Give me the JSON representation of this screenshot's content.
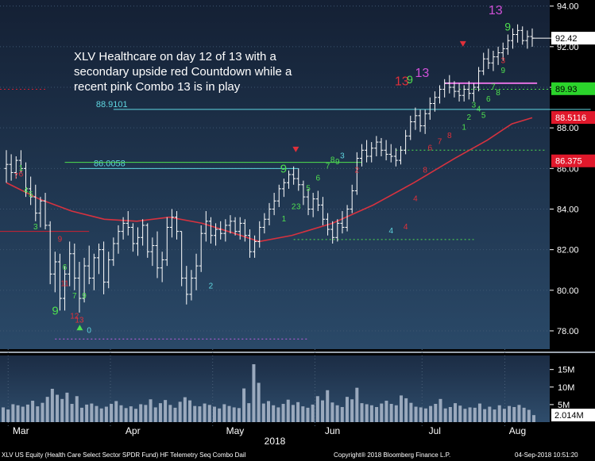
{
  "chart_data": {
    "type": "ohlc",
    "annotation": [
      "XLV Healthcare on day 12 of 13 with a",
      "secondary upside red Countdown while a",
      "recent pink Combo 13 is in play"
    ],
    "x_ticks": [
      "Mar",
      "Apr",
      "May",
      "Jun",
      "Jul",
      "Aug"
    ],
    "x_year": "2018",
    "y_ticks": [
      78,
      80,
      82,
      84,
      86,
      88,
      90,
      92,
      94
    ],
    "y_tick_labels": [
      "78.00",
      "80.00",
      "82.00",
      "84.00",
      "86.00",
      "88.00",
      "90.00",
      "92.00",
      "94.00"
    ],
    "ylim": [
      77.1,
      94.3
    ],
    "price_tags": [
      {
        "label": "92.42",
        "value": 92.42,
        "color": "#ffffff",
        "text_color": "#000000"
      },
      {
        "label": "89.93",
        "value": 89.93,
        "color": "#2bd42b",
        "text_color": "#000000"
      },
      {
        "label": "88.5116",
        "value": 88.5116,
        "color": "#e0182b",
        "text_color": "#ffffff"
      },
      {
        "label": "86.375",
        "value": 86.375,
        "color": "#e0182b",
        "text_color": "#ffffff"
      }
    ],
    "levels": [
      {
        "label": "88.9101",
        "value": 88.91,
        "x_start": 22,
        "x_end": 120,
        "color": "#5fd6e0"
      },
      {
        "label": "86.0058",
        "value": 86.0,
        "x_start": 15,
        "x_end": 60,
        "color": "#5fd6e0"
      }
    ],
    "moving_average": {
      "name": "",
      "color": "#d6323f",
      "points": [
        [
          0,
          85.3
        ],
        [
          8,
          84.5
        ],
        [
          16,
          83.9
        ],
        [
          24,
          83.5
        ],
        [
          32,
          83.4
        ],
        [
          40,
          83.6
        ],
        [
          48,
          83.3
        ],
        [
          56,
          82.8
        ],
        [
          62,
          82.4
        ],
        [
          70,
          82.7
        ],
        [
          80,
          83.3
        ],
        [
          90,
          84.2
        ],
        [
          100,
          85.3
        ],
        [
          110,
          86.5
        ],
        [
          118,
          87.4
        ],
        [
          124,
          88.2
        ],
        [
          129,
          88.5
        ]
      ]
    },
    "ohlc_bars": [
      {
        "x": 0,
        "o": 86,
        "h": 86.9,
        "l": 85.3,
        "c": 86.2
      },
      {
        "x": 1,
        "o": 86.2,
        "h": 86.7,
        "l": 85.4,
        "c": 85.8
      },
      {
        "x": 2,
        "o": 85.8,
        "h": 86.6,
        "l": 85.5,
        "c": 86.4
      },
      {
        "x": 3,
        "o": 86.4,
        "h": 86.9,
        "l": 85.8,
        "c": 86.0
      },
      {
        "x": 4,
        "o": 86.0,
        "h": 86.3,
        "l": 84.6,
        "c": 85.0
      },
      {
        "x": 5,
        "o": 85.0,
        "h": 85.6,
        "l": 84.2,
        "c": 84.6
      },
      {
        "x": 6,
        "o": 84.6,
        "h": 85.2,
        "l": 83.4,
        "c": 83.8
      },
      {
        "x": 7,
        "o": 83.8,
        "h": 84.6,
        "l": 83.1,
        "c": 84.4
      },
      {
        "x": 8,
        "o": 84.4,
        "h": 84.8,
        "l": 83.0,
        "c": 83.2
      },
      {
        "x": 9,
        "o": 83.2,
        "h": 83.4,
        "l": 80.3,
        "c": 80.8
      },
      {
        "x": 10,
        "o": 80.8,
        "h": 81.9,
        "l": 79.9,
        "c": 81.4
      },
      {
        "x": 11,
        "o": 81.4,
        "h": 81.8,
        "l": 79.0,
        "c": 79.6
      },
      {
        "x": 12,
        "o": 79.6,
        "h": 81.2,
        "l": 79.0,
        "c": 80.8
      },
      {
        "x": 13,
        "o": 80.8,
        "h": 82.4,
        "l": 80.2,
        "c": 81.8
      },
      {
        "x": 14,
        "o": 81.8,
        "h": 82.3,
        "l": 80.0,
        "c": 80.6
      },
      {
        "x": 15,
        "o": 80.6,
        "h": 81.4,
        "l": 78.9,
        "c": 79.6
      },
      {
        "x": 16,
        "o": 79.6,
        "h": 81.6,
        "l": 79.4,
        "c": 81.2
      },
      {
        "x": 17,
        "o": 81.2,
        "h": 82.2,
        "l": 80.3,
        "c": 80.6
      },
      {
        "x": 18,
        "o": 80.6,
        "h": 81.8,
        "l": 80.0,
        "c": 81.6
      },
      {
        "x": 19,
        "o": 81.6,
        "h": 82.3,
        "l": 80.8,
        "c": 82.0
      },
      {
        "x": 20,
        "o": 82.0,
        "h": 82.4,
        "l": 79.8,
        "c": 80.4
      },
      {
        "x": 21,
        "o": 80.4,
        "h": 81.9,
        "l": 80.1,
        "c": 81.5
      },
      {
        "x": 22,
        "o": 81.5,
        "h": 82.6,
        "l": 81.2,
        "c": 82.3
      },
      {
        "x": 23,
        "o": 82.3,
        "h": 83.2,
        "l": 81.8,
        "c": 82.9
      },
      {
        "x": 24,
        "o": 82.9,
        "h": 83.6,
        "l": 82.5,
        "c": 83.3
      },
      {
        "x": 25,
        "o": 83.3,
        "h": 83.9,
        "l": 82.7,
        "c": 83.1
      },
      {
        "x": 26,
        "o": 83.1,
        "h": 83.3,
        "l": 81.9,
        "c": 82.3
      },
      {
        "x": 27,
        "o": 82.3,
        "h": 83.1,
        "l": 81.7,
        "c": 82.6
      },
      {
        "x": 28,
        "o": 82.6,
        "h": 83.5,
        "l": 82.2,
        "c": 83.2
      },
      {
        "x": 29,
        "o": 83.2,
        "h": 83.3,
        "l": 81.6,
        "c": 81.9
      },
      {
        "x": 30,
        "o": 81.9,
        "h": 82.6,
        "l": 81.2,
        "c": 82.2
      },
      {
        "x": 31,
        "o": 82.2,
        "h": 82.9,
        "l": 80.6,
        "c": 81.1
      },
      {
        "x": 32,
        "o": 81.1,
        "h": 81.9,
        "l": 80.4,
        "c": 81.5
      },
      {
        "x": 33,
        "o": 81.5,
        "h": 83.6,
        "l": 81.2,
        "c": 83.1
      },
      {
        "x": 34,
        "o": 83.1,
        "h": 84.0,
        "l": 82.6,
        "c": 83.6
      },
      {
        "x": 35,
        "o": 83.6,
        "h": 83.9,
        "l": 82.5,
        "c": 82.9
      },
      {
        "x": 36,
        "o": 82.9,
        "h": 82.9,
        "l": 80.2,
        "c": 80.6
      },
      {
        "x": 37,
        "o": 80.6,
        "h": 81.2,
        "l": 79.3,
        "c": 79.8
      },
      {
        "x": 38,
        "o": 79.8,
        "h": 81.0,
        "l": 79.5,
        "c": 80.6
      },
      {
        "x": 39,
        "o": 80.6,
        "h": 81.8,
        "l": 80.0,
        "c": 81.2
      },
      {
        "x": 40,
        "o": 81.2,
        "h": 83.2,
        "l": 80.9,
        "c": 82.8
      },
      {
        "x": 41,
        "o": 82.8,
        "h": 83.9,
        "l": 82.4,
        "c": 83.4
      },
      {
        "x": 42,
        "o": 83.4,
        "h": 83.6,
        "l": 82.3,
        "c": 82.7
      },
      {
        "x": 43,
        "o": 82.7,
        "h": 83.3,
        "l": 82.2,
        "c": 83.0
      },
      {
        "x": 44,
        "o": 83.0,
        "h": 83.4,
        "l": 82.5,
        "c": 82.8
      },
      {
        "x": 45,
        "o": 82.8,
        "h": 83.5,
        "l": 82.4,
        "c": 83.2
      },
      {
        "x": 46,
        "o": 83.2,
        "h": 83.7,
        "l": 82.8,
        "c": 83.4
      },
      {
        "x": 47,
        "o": 83.4,
        "h": 83.6,
        "l": 82.7,
        "c": 82.9
      },
      {
        "x": 48,
        "o": 82.9,
        "h": 83.6,
        "l": 82.5,
        "c": 83.3
      },
      {
        "x": 49,
        "o": 83.3,
        "h": 83.5,
        "l": 82.4,
        "c": 82.7
      },
      {
        "x": 50,
        "o": 82.7,
        "h": 83.0,
        "l": 81.6,
        "c": 81.9
      },
      {
        "x": 51,
        "o": 81.9,
        "h": 82.7,
        "l": 81.6,
        "c": 82.4
      },
      {
        "x": 52,
        "o": 82.4,
        "h": 83.4,
        "l": 82.1,
        "c": 83.1
      },
      {
        "x": 53,
        "o": 83.1,
        "h": 83.8,
        "l": 82.8,
        "c": 83.5
      },
      {
        "x": 54,
        "o": 83.5,
        "h": 84.3,
        "l": 83.2,
        "c": 84.0
      },
      {
        "x": 55,
        "o": 84.0,
        "h": 84.8,
        "l": 83.7,
        "c": 84.4
      },
      {
        "x": 56,
        "o": 84.4,
        "h": 85.2,
        "l": 84.1,
        "c": 85.0
      },
      {
        "x": 57,
        "o": 85.0,
        "h": 85.5,
        "l": 84.6,
        "c": 85.3
      },
      {
        "x": 58,
        "o": 85.3,
        "h": 85.9,
        "l": 85.0,
        "c": 85.7
      },
      {
        "x": 59,
        "o": 85.7,
        "h": 86.1,
        "l": 85.2,
        "c": 85.5
      },
      {
        "x": 60,
        "o": 85.5,
        "h": 86.0,
        "l": 84.9,
        "c": 85.2
      },
      {
        "x": 61,
        "o": 85.2,
        "h": 85.4,
        "l": 84.2,
        "c": 84.6
      },
      {
        "x": 62,
        "o": 84.6,
        "h": 85.0,
        "l": 83.7,
        "c": 84.0
      },
      {
        "x": 63,
        "o": 84.0,
        "h": 84.8,
        "l": 83.6,
        "c": 84.5
      },
      {
        "x": 64,
        "o": 84.5,
        "h": 84.9,
        "l": 83.9,
        "c": 84.2
      },
      {
        "x": 65,
        "o": 84.2,
        "h": 84.6,
        "l": 83.2,
        "c": 83.5
      },
      {
        "x": 66,
        "o": 83.5,
        "h": 83.8,
        "l": 82.7,
        "c": 83.0
      },
      {
        "x": 67,
        "o": 83.0,
        "h": 83.4,
        "l": 82.3,
        "c": 82.6
      },
      {
        "x": 68,
        "o": 82.6,
        "h": 83.5,
        "l": 82.4,
        "c": 83.3
      },
      {
        "x": 69,
        "o": 83.3,
        "h": 83.9,
        "l": 82.8,
        "c": 83.1
      },
      {
        "x": 70,
        "o": 83.1,
        "h": 84.2,
        "l": 82.9,
        "c": 84.0
      },
      {
        "x": 71,
        "o": 84.0,
        "h": 85.2,
        "l": 83.8,
        "c": 84.9
      },
      {
        "x": 72,
        "o": 84.9,
        "h": 86.8,
        "l": 84.7,
        "c": 86.5
      },
      {
        "x": 73,
        "o": 86.5,
        "h": 87.2,
        "l": 86.1,
        "c": 86.9
      },
      {
        "x": 74,
        "o": 86.9,
        "h": 87.4,
        "l": 86.3,
        "c": 86.6
      },
      {
        "x": 75,
        "o": 86.6,
        "h": 87.3,
        "l": 86.3,
        "c": 87.0
      },
      {
        "x": 76,
        "o": 87.0,
        "h": 87.6,
        "l": 86.6,
        "c": 87.3
      },
      {
        "x": 77,
        "o": 87.3,
        "h": 87.5,
        "l": 86.6,
        "c": 86.9
      },
      {
        "x": 78,
        "o": 86.9,
        "h": 87.4,
        "l": 86.4,
        "c": 86.7
      },
      {
        "x": 79,
        "o": 86.7,
        "h": 87.2,
        "l": 86.3,
        "c": 86.6
      },
      {
        "x": 80,
        "o": 86.6,
        "h": 87.0,
        "l": 86.1,
        "c": 86.4
      },
      {
        "x": 81,
        "o": 86.4,
        "h": 87.1,
        "l": 86.2,
        "c": 86.9
      },
      {
        "x": 82,
        "o": 86.9,
        "h": 87.9,
        "l": 86.7,
        "c": 87.6
      },
      {
        "x": 83,
        "o": 87.6,
        "h": 88.6,
        "l": 87.4,
        "c": 88.3
      },
      {
        "x": 84,
        "o": 88.3,
        "h": 89.0,
        "l": 87.9,
        "c": 88.6
      },
      {
        "x": 85,
        "o": 88.6,
        "h": 88.9,
        "l": 87.8,
        "c": 88.1
      },
      {
        "x": 86,
        "o": 88.1,
        "h": 88.9,
        "l": 87.7,
        "c": 88.7
      },
      {
        "x": 87,
        "o": 88.7,
        "h": 89.5,
        "l": 88.4,
        "c": 89.2
      },
      {
        "x": 88,
        "o": 89.2,
        "h": 89.8,
        "l": 88.8,
        "c": 89.5
      },
      {
        "x": 89,
        "o": 89.5,
        "h": 90.1,
        "l": 89.2,
        "c": 89.9
      },
      {
        "x": 90,
        "o": 89.9,
        "h": 90.4,
        "l": 89.5,
        "c": 90.2
      },
      {
        "x": 91,
        "o": 90.2,
        "h": 90.6,
        "l": 89.7,
        "c": 90.0
      },
      {
        "x": 92,
        "o": 90.0,
        "h": 90.3,
        "l": 89.5,
        "c": 89.8
      },
      {
        "x": 93,
        "o": 89.8,
        "h": 90.2,
        "l": 89.3,
        "c": 89.6
      },
      {
        "x": 94,
        "o": 89.6,
        "h": 90.1,
        "l": 89.3,
        "c": 89.9
      },
      {
        "x": 95,
        "o": 89.9,
        "h": 90.3,
        "l": 89.4,
        "c": 89.7
      },
      {
        "x": 96,
        "o": 89.7,
        "h": 90.2,
        "l": 89.3,
        "c": 90.0
      },
      {
        "x": 97,
        "o": 90.0,
        "h": 91.0,
        "l": 89.8,
        "c": 90.8
      },
      {
        "x": 98,
        "o": 90.8,
        "h": 91.7,
        "l": 90.6,
        "c": 91.4
      },
      {
        "x": 99,
        "o": 91.4,
        "h": 91.9,
        "l": 90.9,
        "c": 91.2
      },
      {
        "x": 100,
        "o": 91.2,
        "h": 91.8,
        "l": 90.8,
        "c": 91.5
      },
      {
        "x": 101,
        "o": 91.5,
        "h": 92.0,
        "l": 91.1,
        "c": 91.7
      },
      {
        "x": 102,
        "o": 91.7,
        "h": 92.2,
        "l": 91.3,
        "c": 91.9
      },
      {
        "x": 103,
        "o": 91.9,
        "h": 92.6,
        "l": 91.6,
        "c": 92.3
      },
      {
        "x": 104,
        "o": 92.3,
        "h": 92.9,
        "l": 91.9,
        "c": 92.6
      },
      {
        "x": 105,
        "o": 92.6,
        "h": 93.1,
        "l": 92.2,
        "c": 92.8
      },
      {
        "x": 106,
        "o": 92.8,
        "h": 93.0,
        "l": 92.1,
        "c": 92.3
      },
      {
        "x": 107,
        "o": 92.3,
        "h": 92.8,
        "l": 91.9,
        "c": 92.5
      },
      {
        "x": 108,
        "o": 92.5,
        "h": 92.9,
        "l": 92.0,
        "c": 92.42
      }
    ],
    "volume": {
      "y_tick_labels": [
        "15M",
        "10M",
        "5M"
      ],
      "y_ticks": [
        15,
        10,
        5
      ],
      "last_label": "2.014M",
      "last_value": 2.014,
      "ylim": [
        0,
        19
      ],
      "values": [
        4.2,
        3.6,
        5.1,
        4.8,
        4.4,
        5.0,
        6.1,
        4.5,
        5.5,
        7.2,
        9.5,
        7.8,
        6.6,
        8.4,
        5.2,
        7.4,
        4.1,
        5.0,
        5.3,
        4.6,
        3.9,
        4.4,
        5.2,
        6.0,
        4.8,
        4.0,
        4.5,
        3.8,
        5.1,
        4.9,
        6.5,
        4.2,
        5.4,
        6.3,
        4.9,
        4.1,
        5.8,
        7.1,
        6.2,
        4.6,
        4.5,
        5.3,
        4.9,
        4.4,
        3.9,
        5.1,
        4.6,
        4.2,
        4.0,
        9.6,
        5.4,
        16.5,
        11.2,
        5.3,
        6.0,
        4.8,
        4.2,
        5.2,
        6.4,
        4.9,
        5.7,
        4.5,
        4.1,
        5.0,
        7.4,
        6.2,
        9.1,
        5.6,
        4.8,
        4.3,
        7.2,
        6.5,
        9.8,
        5.4,
        5.1,
        4.8,
        4.3,
        5.3,
        6.1,
        5.2,
        4.8,
        7.6,
        6.8,
        5.5,
        4.4,
        4.2,
        3.9,
        4.6,
        5.2,
        6.6,
        3.9,
        4.3,
        5.4,
        4.7,
        3.8,
        4.2,
        4.1,
        5.3,
        3.7,
        4.4,
        3.6,
        4.8,
        3.8,
        4.6,
        4.3,
        4.9,
        4.1,
        3.5,
        2.0
      ]
    }
  },
  "footer": {
    "left": "XLV US Equity  (Health Care Select Sector SPDR Fund) HF Telemetry Seq Combo  Dail",
    "center": "Copyright® 2018 Bloomberg Finance L.P.",
    "right": "04-Sep-2018 10:51:20"
  }
}
